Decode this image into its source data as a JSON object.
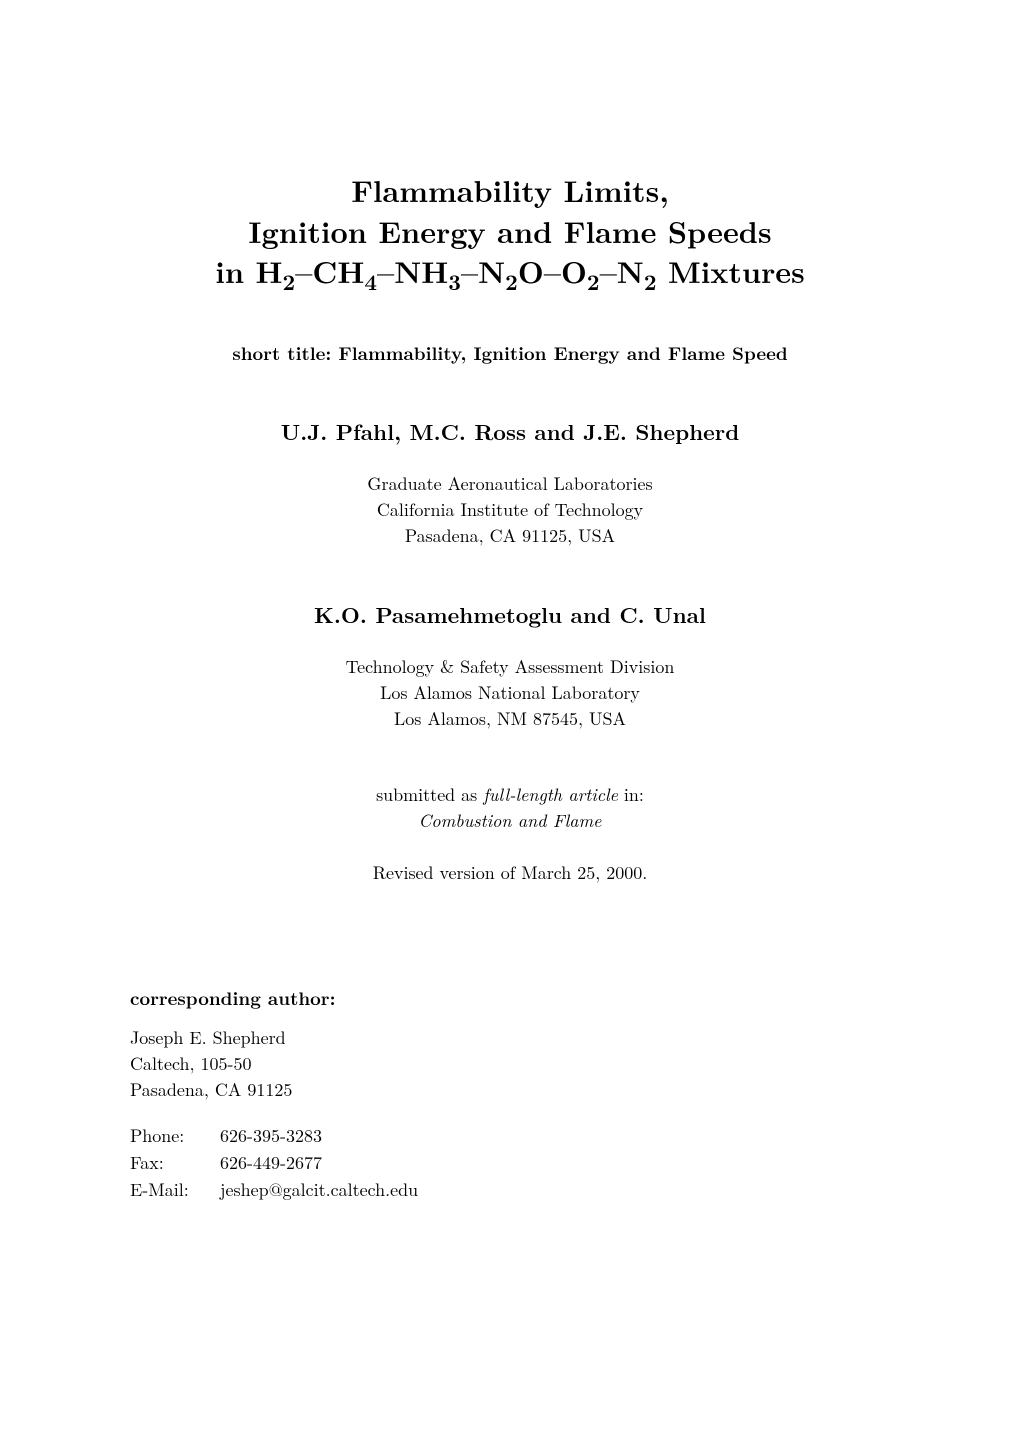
{
  "title": {
    "line1": "Flammability Limits,",
    "line2": "Ignition Energy and Flame Speeds",
    "line3_prefix": "in H",
    "line3_h2_sub": "2",
    "line3_ch": "–CH",
    "line3_ch4_sub": "4",
    "line3_nh": "–NH",
    "line3_nh3_sub": "3",
    "line3_n2o_n": "–N",
    "line3_n2o_sub": "2",
    "line3_o": "O–O",
    "line3_o2_sub": "2",
    "line3_n2_n": "–N",
    "line3_n2_sub": "2",
    "line3_suffix": " Mixtures"
  },
  "short_title": "short title: Flammability, Ignition Energy and Flame Speed",
  "authors1": "U.J. Pfahl, M.C. Ross and J.E. Shepherd",
  "affiliation1": {
    "l1": "Graduate Aeronautical Laboratories",
    "l2": "California Institute of Technology",
    "l3": "Pasadena, CA 91125, USA"
  },
  "authors2": "K.O. Pasamehmetoglu and C. Unal",
  "affiliation2": {
    "l1": "Technology & Safety Assessment Division",
    "l2": "Los Alamos National Laboratory",
    "l3": "Los Alamos, NM 87545, USA"
  },
  "submitted": {
    "prefix": "submitted as ",
    "italic1": "full-length article",
    "mid": " in:",
    "italic2": "Combustion and Flame"
  },
  "revised": "Revised version of March 25, 2000.",
  "corresponding": {
    "label": "corresponding author:",
    "name": "Joseph E. Shepherd",
    "addr1": "Caltech, 105-50",
    "addr2": "Pasadena, CA 91125",
    "phone_key": "Phone:",
    "phone_val": "626-395-3283",
    "fax_key": "Fax:",
    "fax_val": "626-449-2677",
    "email_key": "E-Mail:",
    "email_val": "jeshep@galcit.caltech.edu"
  }
}
